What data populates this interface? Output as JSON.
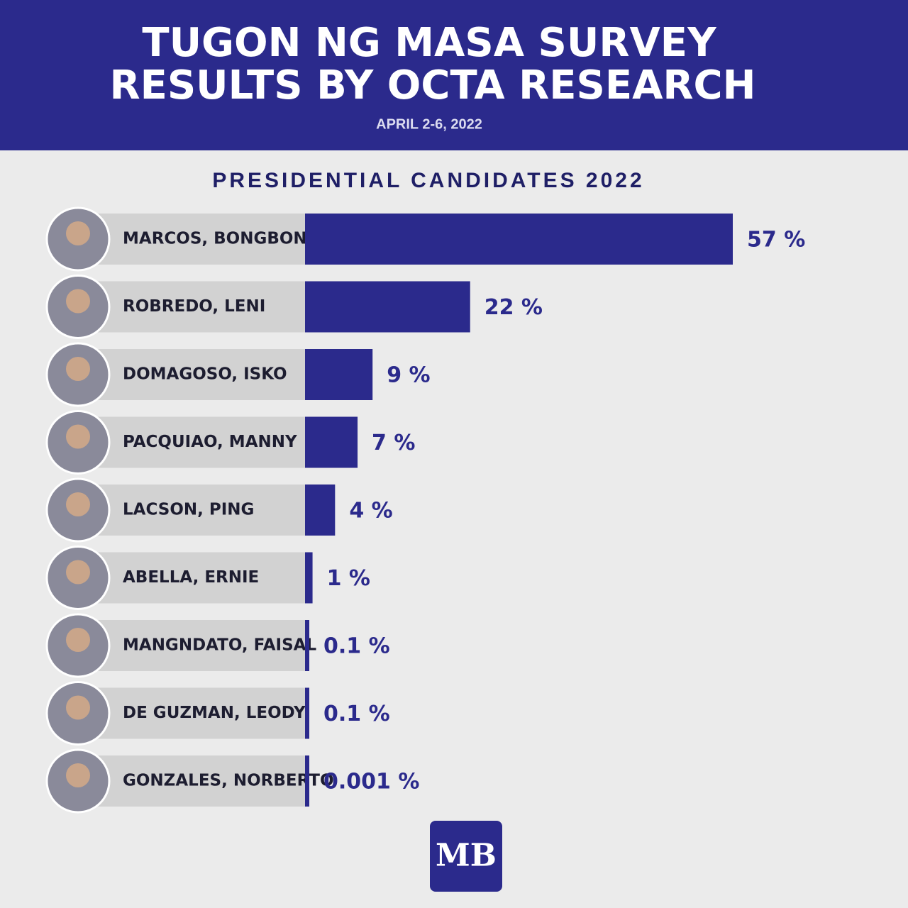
{
  "chart_data": {
    "type": "bar",
    "orientation": "horizontal",
    "title": [
      "TUGON NG MASA SURVEY",
      "RESULTS BY OCTA RESEARCH"
    ],
    "subtitle": "APRIL 2-6, 2022",
    "heading": "PRESIDENTIAL CANDIDATES 2022",
    "categories": [
      "MARCOS, BONGBONG",
      "ROBREDO, LENI",
      "DOMAGOSO, ISKO",
      "PACQUIAO, MANNY",
      "LACSON, PING",
      "ABELLA, ERNIE",
      "MANGNDATO, FAISAL",
      "DE GUZMAN, LEODY",
      "GONZALES, NORBERTO"
    ],
    "values": [
      57,
      22,
      9,
      7,
      4,
      1,
      0.1,
      0.1,
      0.001
    ],
    "value_labels": [
      "57 %",
      "22 %",
      "9 %",
      "7 %",
      "4 %",
      "1 %",
      "0.1 %",
      "0.1 %",
      "0.001 %"
    ],
    "color": "#2b2a8c",
    "logo": "MB"
  }
}
